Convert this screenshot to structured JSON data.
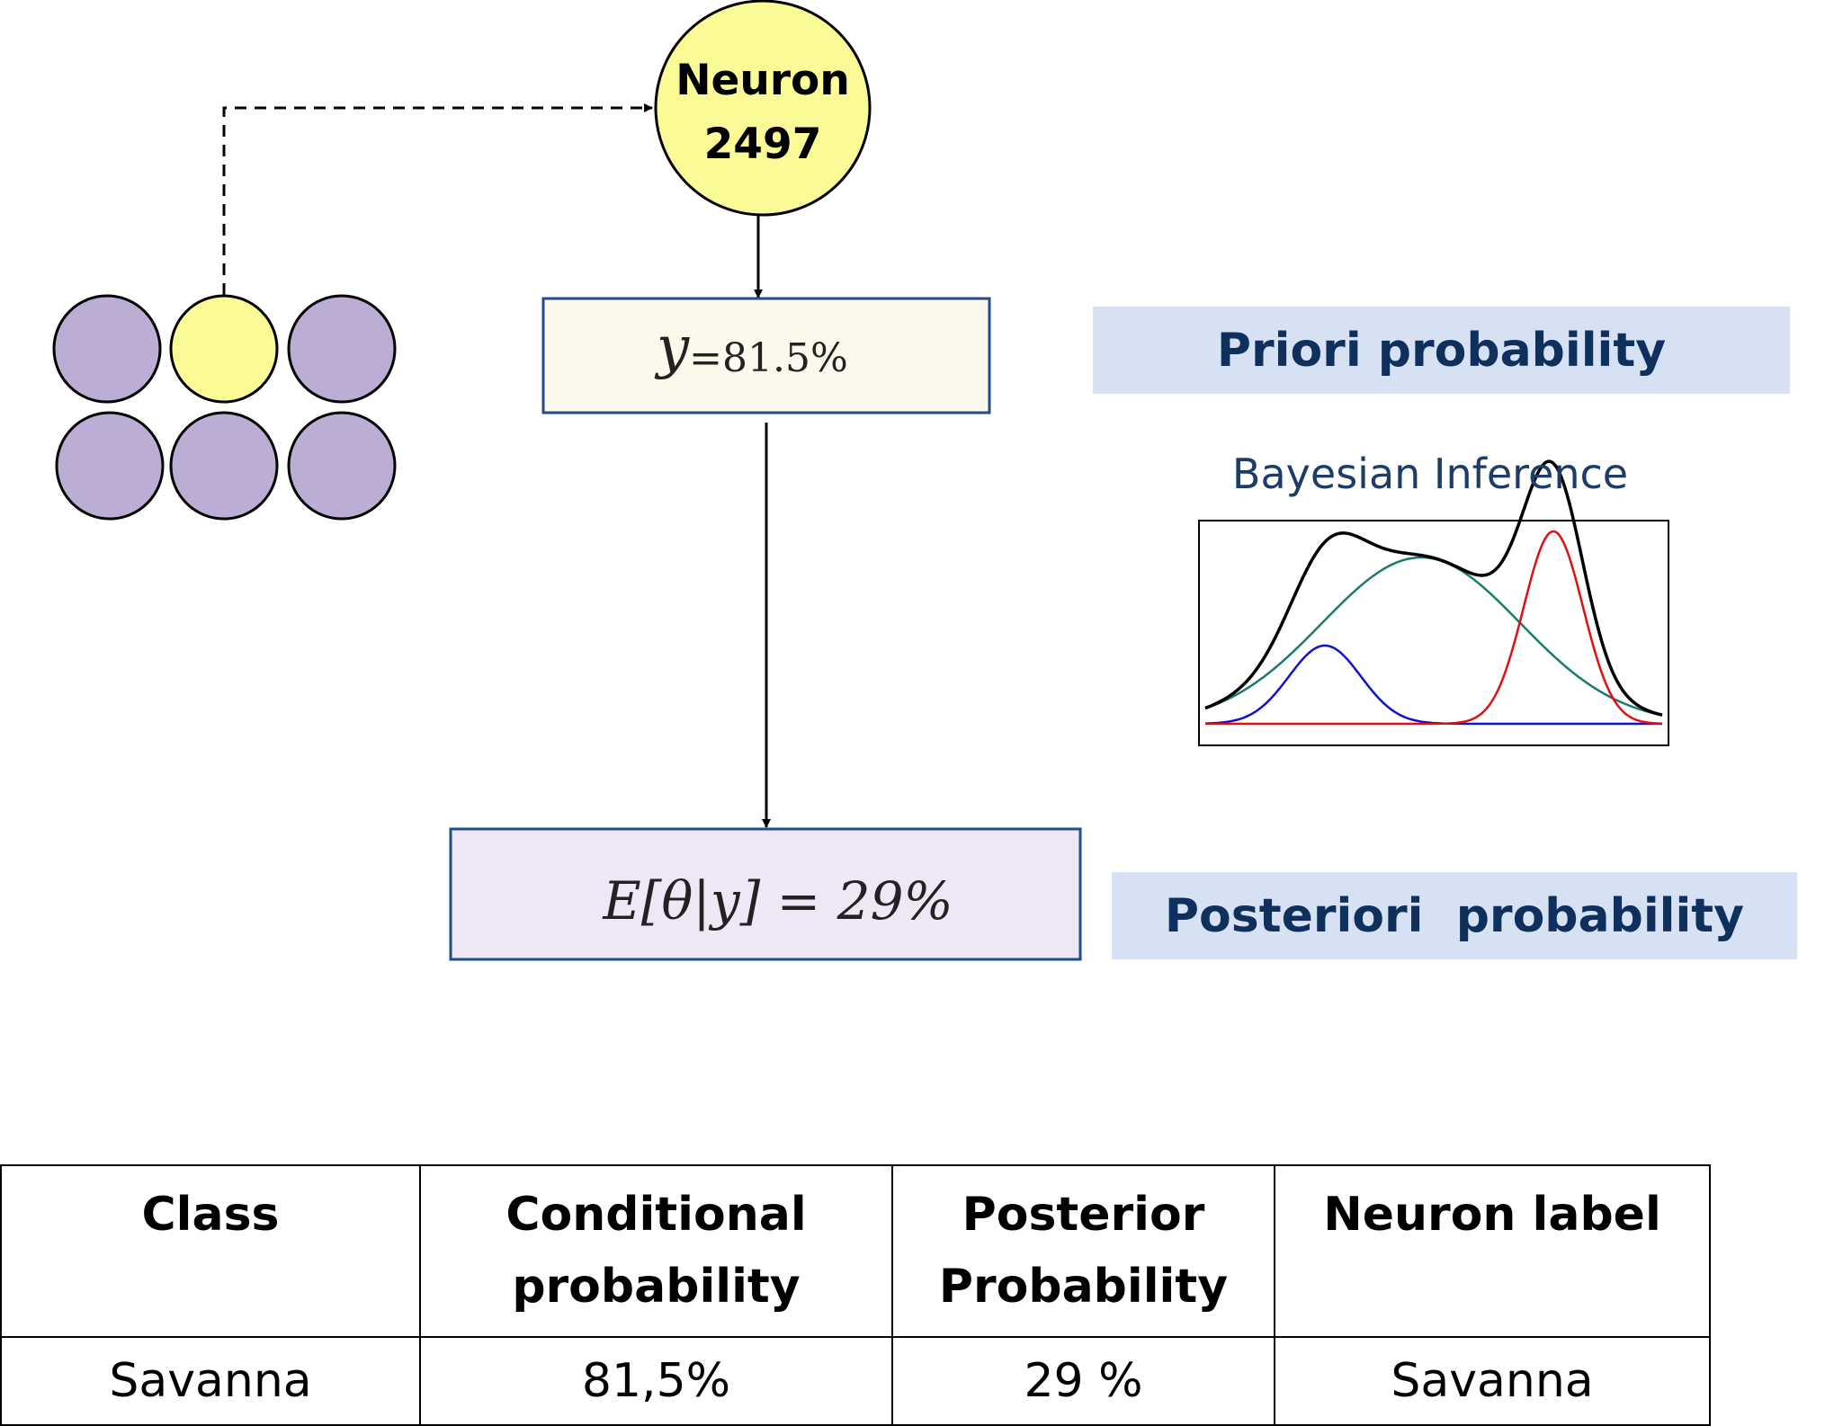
{
  "neuron": {
    "line1": "Neuron",
    "line2": "2497"
  },
  "prior_box": {
    "symbol": "y",
    "value": "=81.5%"
  },
  "posterior_box": {
    "expression": "E[θ|y] = 29%"
  },
  "labels": {
    "priori": "Priori probability",
    "posteriori": "Posteriori  probability",
    "inference_title": "Bayesian Inference"
  },
  "som_grid": {
    "rows": 2,
    "cols": 3,
    "highlight": {
      "row": 0,
      "col": 1
    },
    "colors": {
      "neuron": "#bcadd4",
      "winner": "#fafa96",
      "stroke": "#000000"
    }
  },
  "colors": {
    "prior_fill": "#fcf9ec",
    "posterior_fill": "#f0e7f6",
    "box_stroke": "#1f4f8a",
    "label_bg": "#d6e2f4",
    "label_text": "#0f2f5c",
    "curve_blue": "#1010d0",
    "curve_teal": "#1a7a70",
    "curve_red": "#e01010",
    "curve_total": "#000000"
  },
  "table": {
    "headers": [
      "Class",
      "Conditional\nprobability",
      "Posterior\nProbability",
      "Neuron label"
    ],
    "rows": [
      [
        "Savanna",
        "81,5%",
        "29 %",
        "Savanna"
      ]
    ]
  }
}
